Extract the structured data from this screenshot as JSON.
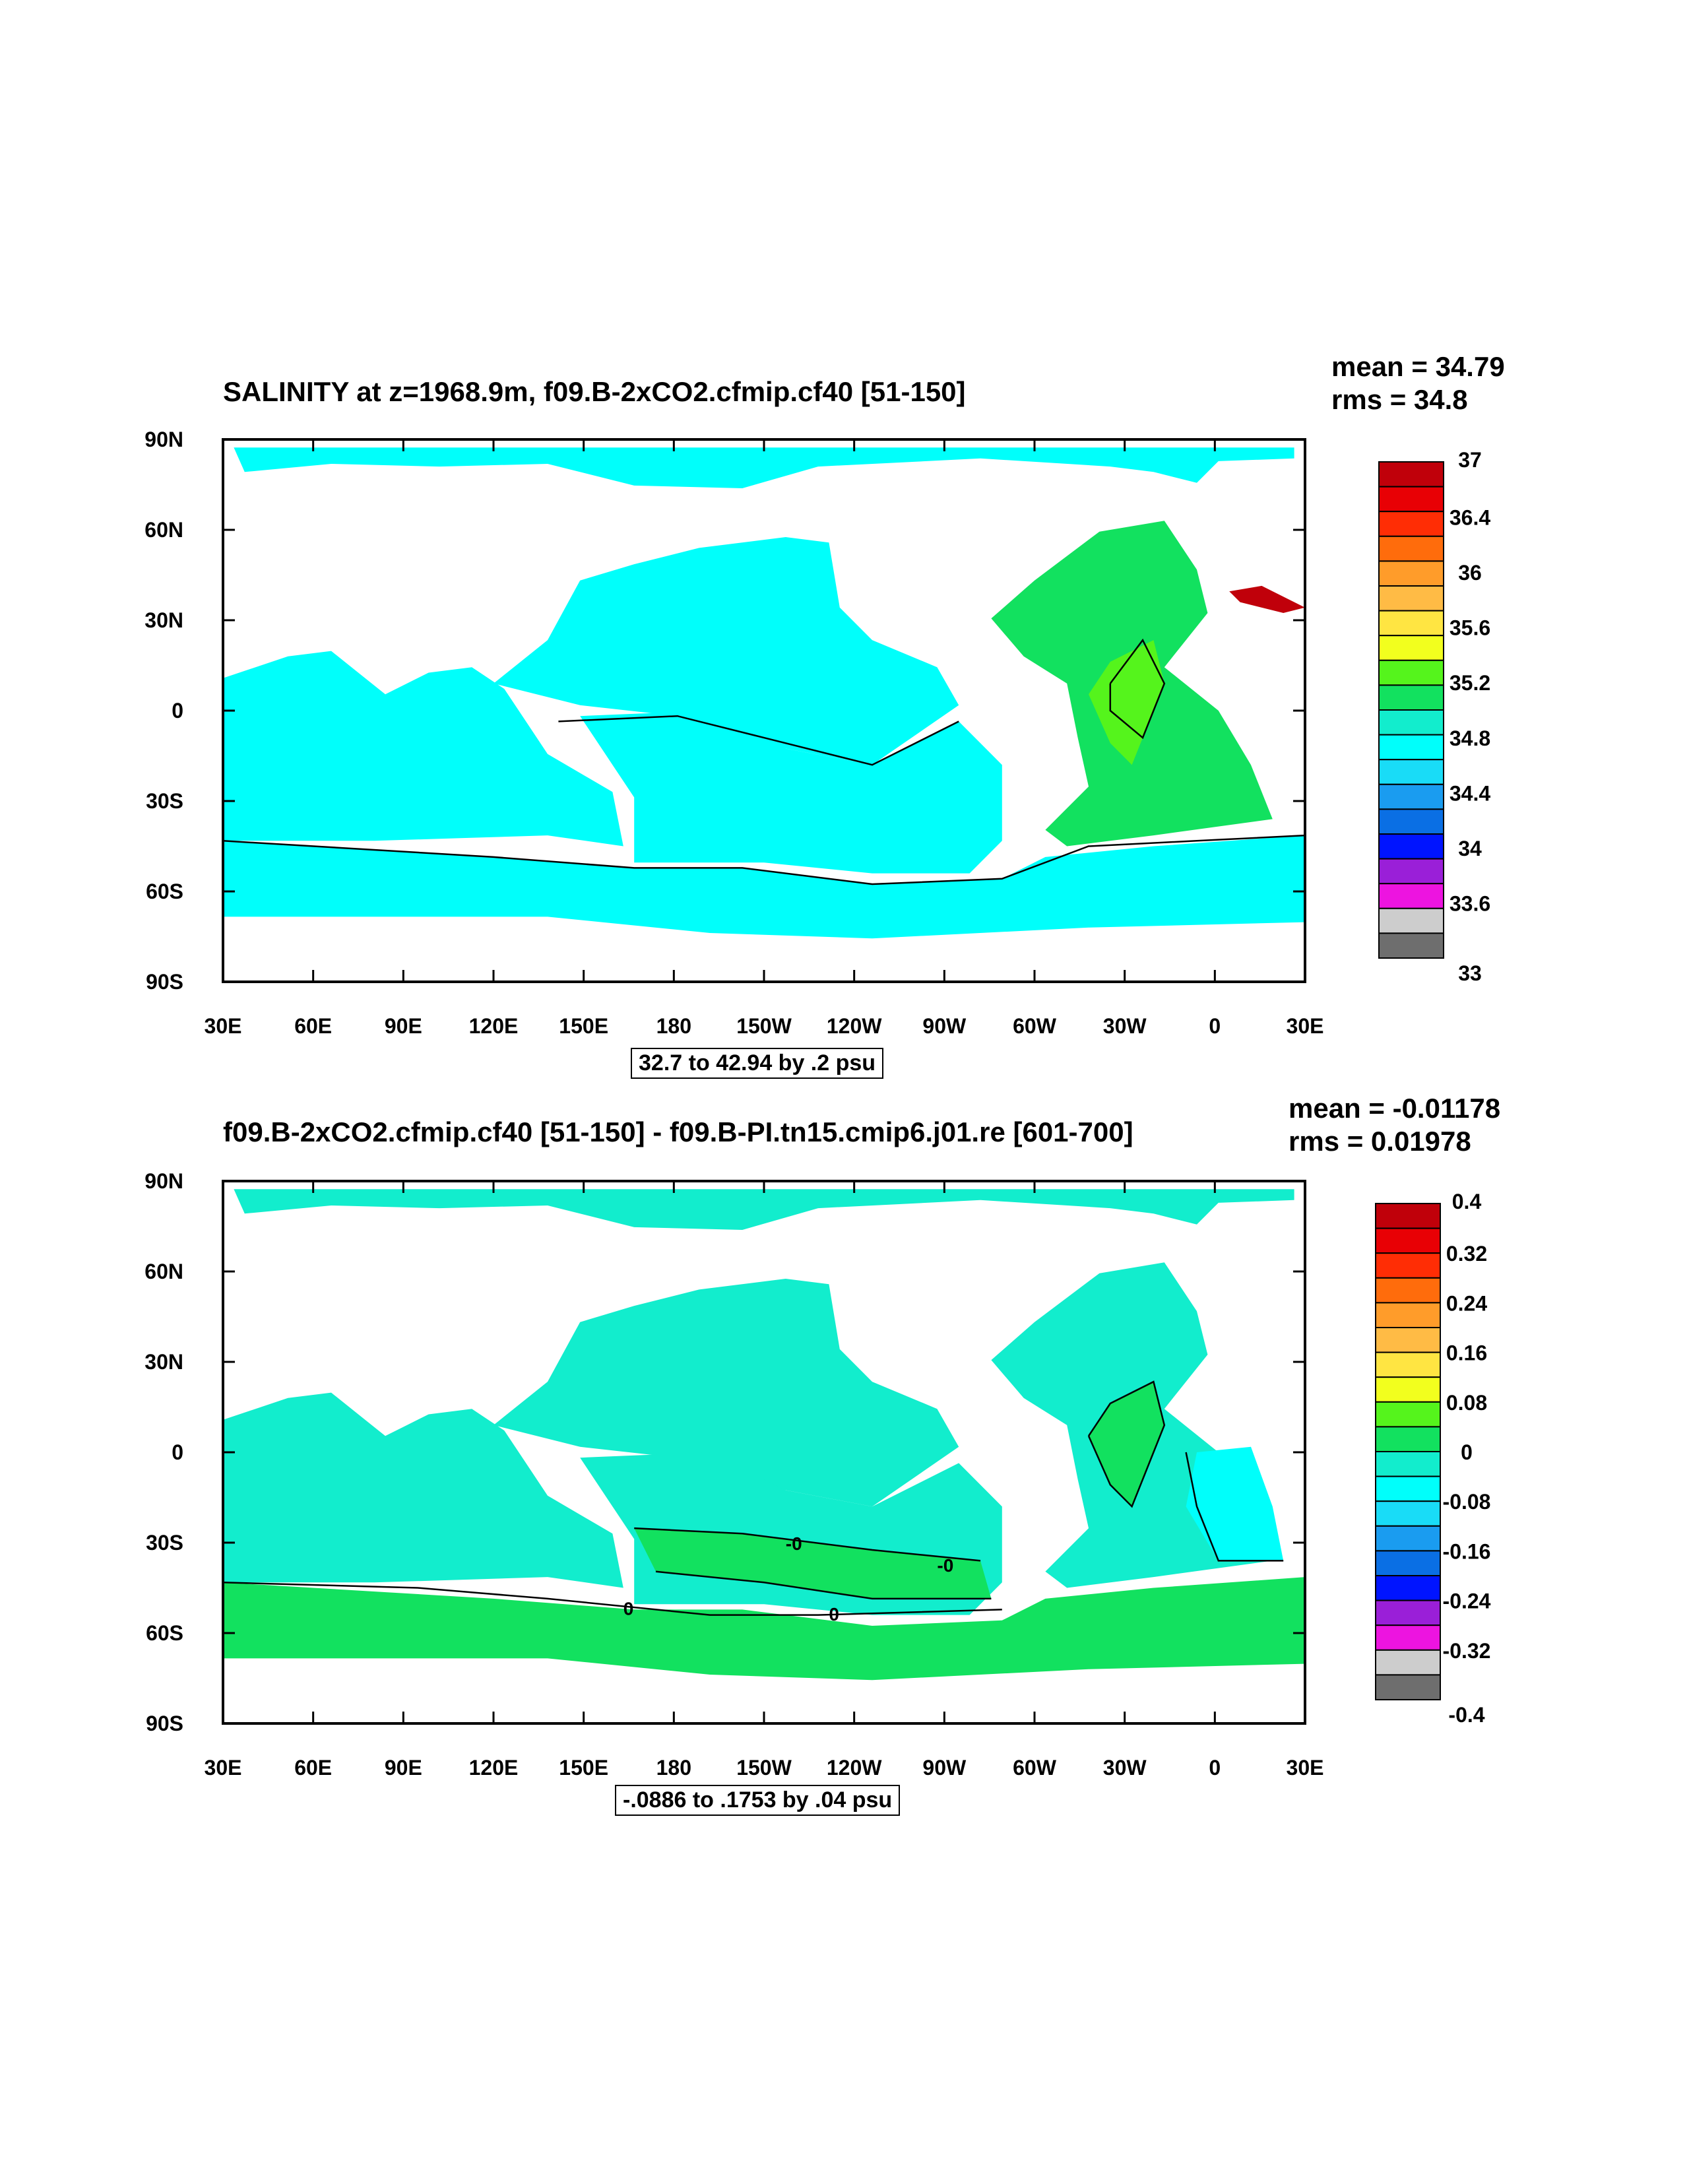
{
  "palette": [
    "#6e6e6e",
    "#cdcdcd",
    "#ed14e0",
    "#9a1fd8",
    "#0014ff",
    "#0a6fe4",
    "#1a9cf0",
    "#19dcf7",
    "#00fffb",
    "#12edcd",
    "#12e15f",
    "#55f41c",
    "#f2ff1e",
    "#ffe542",
    "#ffbb45",
    "#ff9c2a",
    "#ff6c0c",
    "#ff2d05",
    "#e80005",
    "#c0000a"
  ],
  "chart_data": [
    {
      "type": "heatmap",
      "title": "SALINITY at z=1968.9m, f09.B-2xCO2.cfmip.cf40 [51-150]",
      "stats": {
        "mean": "mean = 34.79",
        "rms": "rms = 34.8"
      },
      "note": "32.7 to 42.94 by .2 psu",
      "x_ticks": [
        "30E",
        "60E",
        "90E",
        "120E",
        "150E",
        "180",
        "150W",
        "120W",
        "90W",
        "60W",
        "30W",
        "0",
        "30E"
      ],
      "y_ticks": [
        "90N",
        "60N",
        "30N",
        "0",
        "30S",
        "60S",
        "90S"
      ],
      "colorbar_labels": [
        "37",
        "36.4",
        "36",
        "35.6",
        "35.2",
        "34.8",
        "34.4",
        "34",
        "33.6",
        "33"
      ],
      "colorbar_range": [
        33,
        37
      ],
      "regions": {
        "arctic": "34.8",
        "north_pacific": "34.6",
        "south_pacific": "34.7",
        "indian": "34.7",
        "southern_ocean": "34.8",
        "atlantic": "35.0",
        "mid_atlantic": "35.3",
        "mediterranean": "38.0"
      }
    },
    {
      "type": "heatmap",
      "title": "f09.B-2xCO2.cfmip.cf40 [51-150] - f09.B-PI.tn15.cmip6.j01.re [601-700]",
      "stats": {
        "mean": "mean = -0.01178",
        "rms": "rms = 0.01978"
      },
      "note": "-.0886 to .1753 by .04 psu",
      "x_ticks": [
        "30E",
        "60E",
        "90E",
        "120E",
        "150E",
        "180",
        "150W",
        "120W",
        "90W",
        "60W",
        "30W",
        "0",
        "30E"
      ],
      "y_ticks": [
        "90N",
        "60N",
        "30N",
        "0",
        "30S",
        "60S",
        "90S"
      ],
      "colorbar_labels": [
        "0.4",
        "0.32",
        "0.24",
        "0.16",
        "0.08",
        "0",
        "-0.08",
        "-0.16",
        "-0.24",
        "-0.32",
        "-0.4"
      ],
      "colorbar_range": [
        -0.4,
        0.4
      ],
      "contour_labels": [
        "-0",
        "-0",
        "0",
        "0"
      ],
      "regions": {
        "arctic": "-0.02",
        "north_pacific": "-0.02",
        "south_pacific": "-0.02",
        "indian": "-0.02",
        "southern_pacific_band": "0.02",
        "southern_ocean": "0.02",
        "atlantic": "-0.02",
        "mid_atlantic": "0.02",
        "east_south_atlantic": "-0.05"
      }
    }
  ]
}
